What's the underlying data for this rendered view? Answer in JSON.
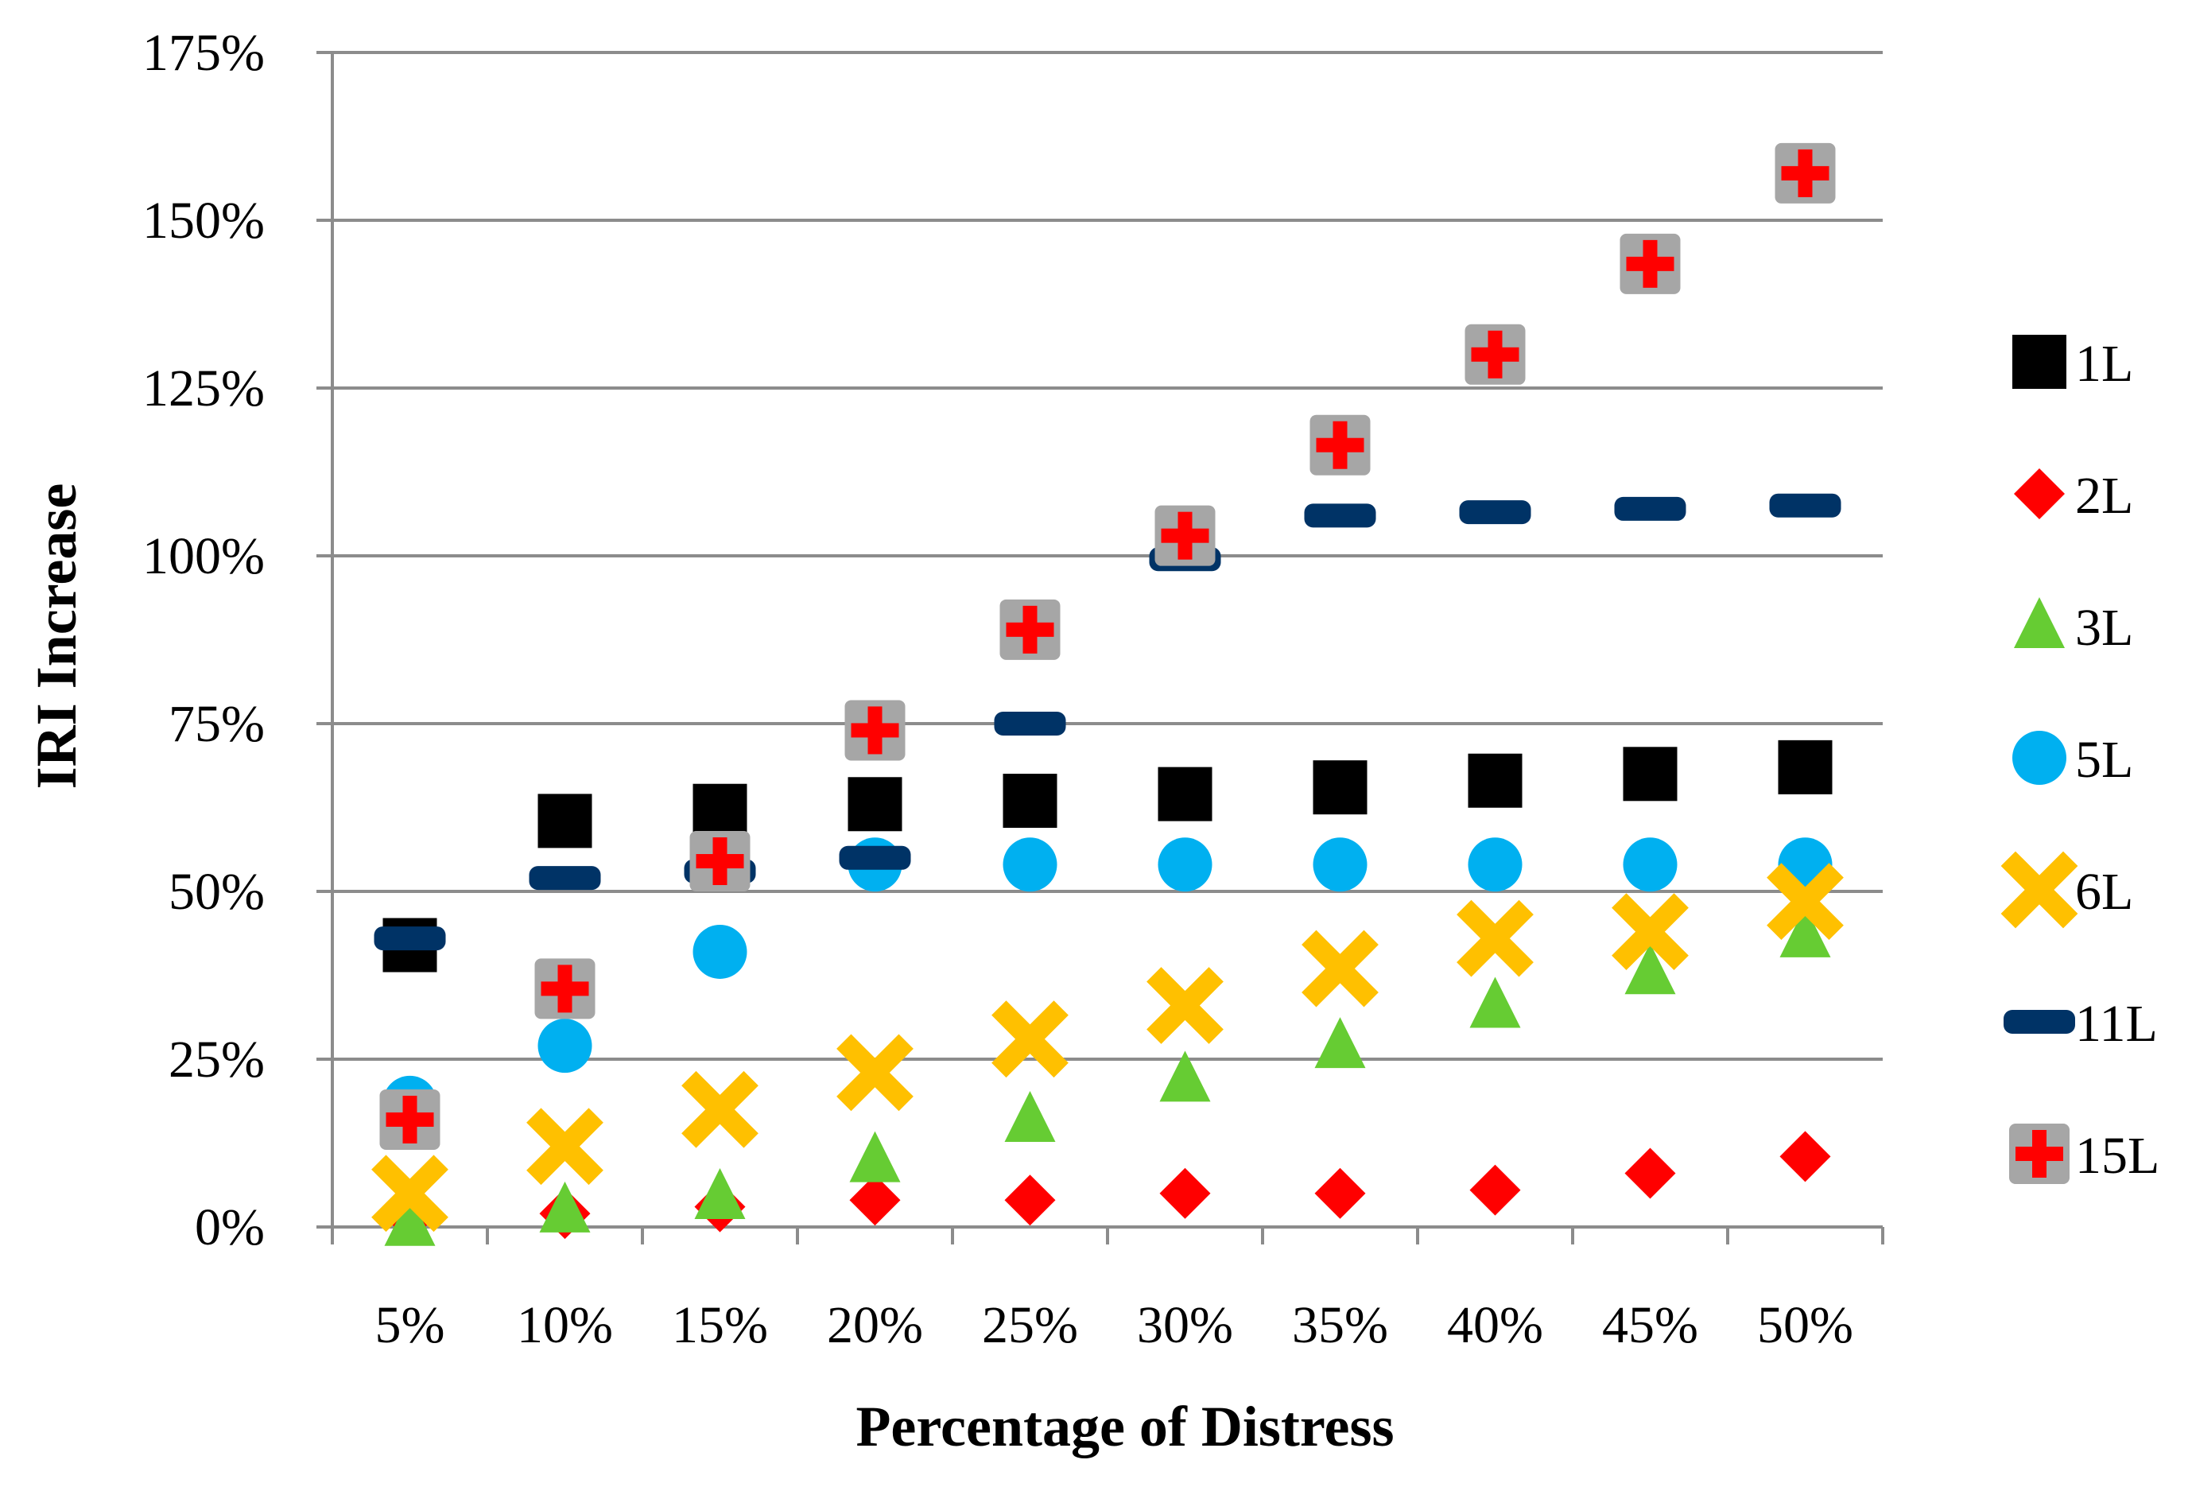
{
  "chart_data": {
    "type": "scatter",
    "title": "",
    "xlabel": "Percentage of Distress",
    "ylabel": "IRI Increase",
    "categories": [
      "5%",
      "10%",
      "15%",
      "20%",
      "25%",
      "30%",
      "35%",
      "40%",
      "45%",
      "50%"
    ],
    "ylim": [
      0,
      175
    ],
    "yticks": [
      0,
      25,
      50,
      75,
      100,
      125,
      150,
      175
    ],
    "ytick_labels": [
      "0%",
      "25%",
      "50%",
      "75%",
      "100%",
      "125%",
      "150%",
      "175%"
    ],
    "grid": true,
    "legend_position": "right",
    "series": [
      {
        "name": "1L",
        "marker": "square",
        "color": "#000000",
        "values": [
          42,
          60.5,
          62,
          63,
          63.5,
          64.5,
          65.5,
          66.5,
          67.5,
          68.5
        ]
      },
      {
        "name": "2L",
        "marker": "diamond",
        "color": "#ff0000",
        "values": [
          1.5,
          2,
          3,
          4,
          4,
          5,
          5,
          5.5,
          8,
          10.5
        ]
      },
      {
        "name": "3L",
        "marker": "triangle",
        "color": "#66cc33",
        "values": [
          0.5,
          2.5,
          4.5,
          10,
          16,
          22,
          27,
          33,
          38,
          43.5
        ]
      },
      {
        "name": "5L",
        "marker": "circle",
        "color": "#00b0f0",
        "values": [
          18.5,
          27,
          41,
          54,
          54,
          54,
          54,
          54,
          54,
          54
        ]
      },
      {
        "name": "6L",
        "marker": "x",
        "color": "#ffc000",
        "values": [
          5,
          12,
          17.5,
          23,
          28,
          33,
          38.5,
          43,
          44,
          48.5
        ]
      },
      {
        "name": "11L",
        "marker": "dash",
        "color": "#003366",
        "values": [
          43,
          52,
          53,
          55,
          75,
          99.5,
          106,
          106.5,
          107,
          107.5
        ]
      },
      {
        "name": "15L",
        "marker": "cross",
        "color": "#ff0000",
        "background": "#a6a6a6",
        "values": [
          16,
          35.5,
          54.5,
          74,
          89,
          103,
          116.5,
          130,
          143.5,
          157
        ]
      }
    ]
  }
}
